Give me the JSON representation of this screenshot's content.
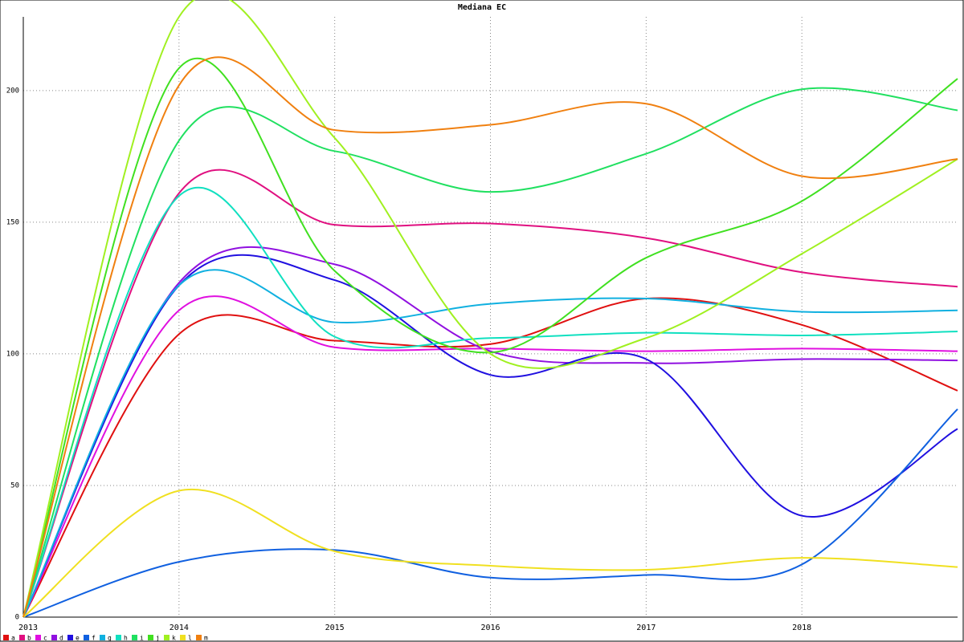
{
  "chart_data": {
    "type": "line",
    "title": "Mediana EC",
    "x": [
      2013,
      2014,
      2015,
      2016,
      2017,
      2018,
      2019
    ],
    "xlim": [
      2013,
      2019
    ],
    "xticks": [
      2013,
      2014,
      2015,
      2016,
      2017,
      2018
    ],
    "ylim": [
      0,
      228
    ],
    "yticks": [
      0,
      50,
      100,
      150,
      200
    ],
    "grid": true,
    "series": [
      {
        "name": "a",
        "color": "#e01010",
        "values": [
          0,
          107.5,
          105,
          103.7,
          121,
          111,
          86
        ]
      },
      {
        "name": "b",
        "color": "#e01080",
        "values": [
          0,
          161,
          149,
          149.5,
          144,
          131,
          125.5
        ]
      },
      {
        "name": "c",
        "color": "#e010e0",
        "values": [
          0,
          116.5,
          102.5,
          102,
          101,
          102,
          101
        ]
      },
      {
        "name": "d",
        "color": "#9010e0",
        "values": [
          0,
          127,
          134,
          101,
          96.5,
          98,
          97.5
        ]
      },
      {
        "name": "e",
        "color": "#2010e0",
        "values": [
          0,
          126,
          128,
          92,
          98,
          38.5,
          71.5
        ]
      },
      {
        "name": "f",
        "color": "#1060e0",
        "values": [
          0,
          21,
          25.5,
          15,
          16,
          20,
          79
        ]
      },
      {
        "name": "g",
        "color": "#10b0e0",
        "values": [
          0,
          126,
          112,
          119,
          121,
          116,
          116.5
        ]
      },
      {
        "name": "h",
        "color": "#10e0c0",
        "values": [
          0,
          160,
          106.5,
          106,
          108,
          107,
          108.5
        ]
      },
      {
        "name": "i",
        "color": "#20e060",
        "values": [
          0,
          181,
          177,
          161.5,
          176,
          200.5,
          192.5
        ]
      },
      {
        "name": "j",
        "color": "#40e020",
        "values": [
          0,
          208.5,
          131.5,
          100.5,
          136.5,
          158,
          204.5
        ]
      },
      {
        "name": "k",
        "color": "#a0f020",
        "values": [
          0,
          228,
          182,
          100,
          106,
          138,
          174
        ]
      },
      {
        "name": "l",
        "color": "#f0e020",
        "values": [
          0,
          48,
          25,
          19.5,
          18,
          22.5,
          19
        ]
      },
      {
        "name": "m",
        "color": "#f08010",
        "values": [
          0,
          202,
          185,
          187,
          195,
          167.5,
          174
        ]
      }
    ]
  }
}
